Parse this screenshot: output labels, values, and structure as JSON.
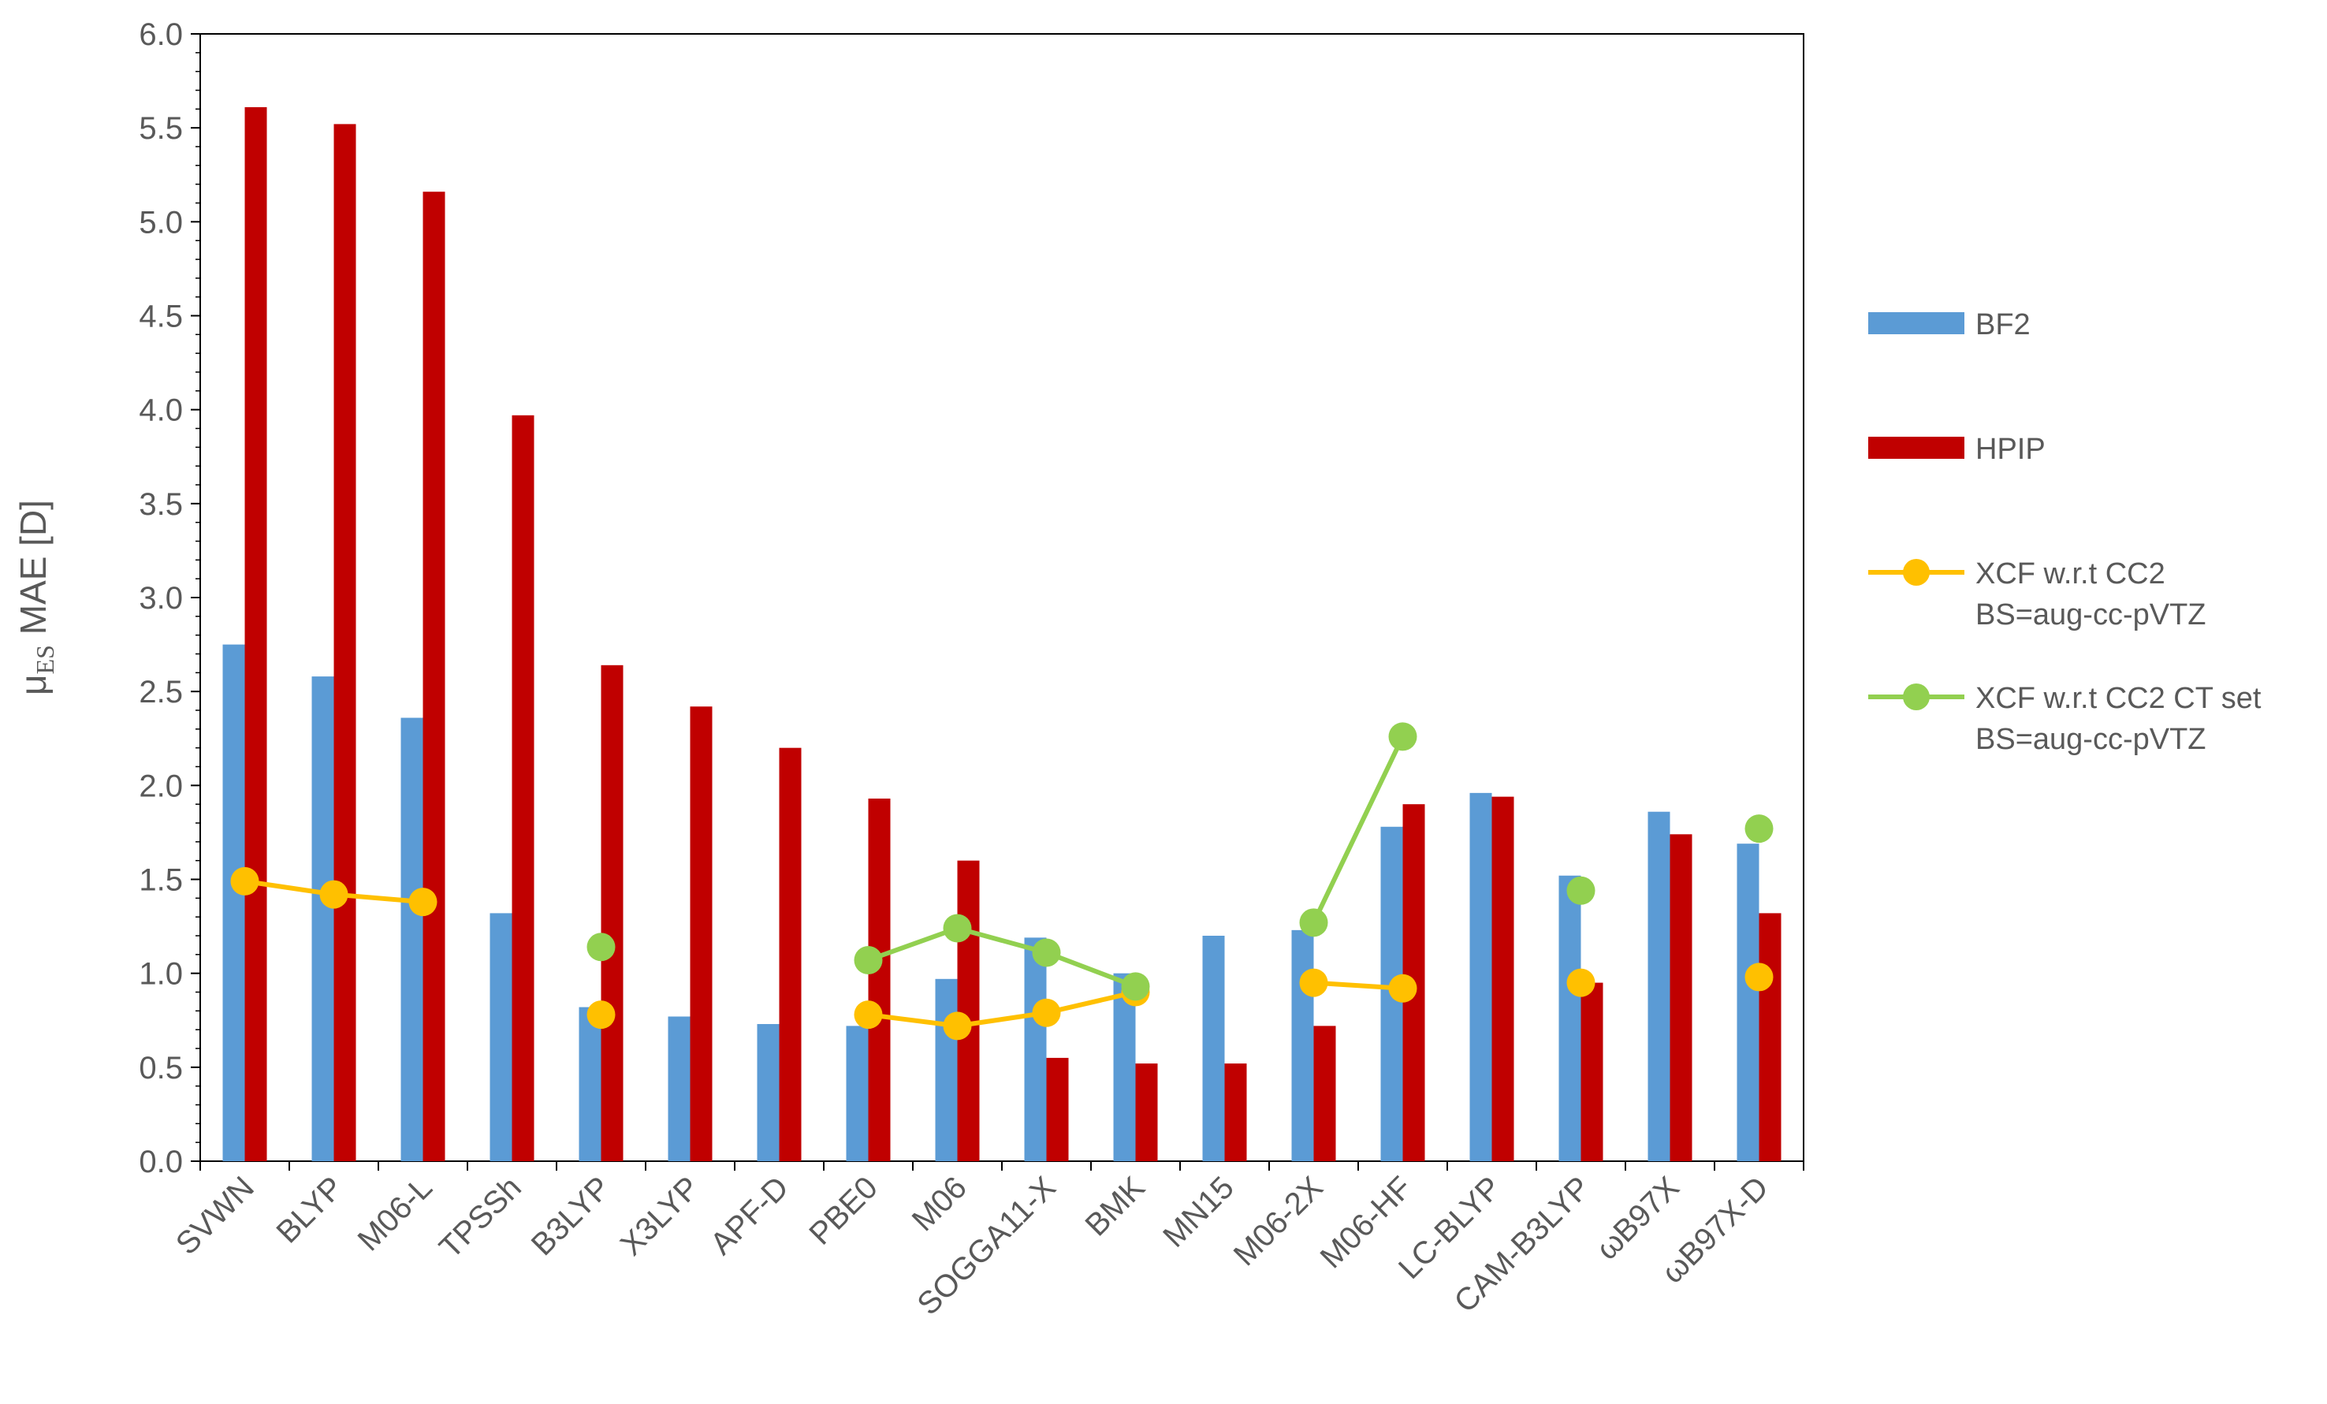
{
  "chart_data": {
    "type": "bar",
    "categories": [
      "SVWN",
      "BLYP",
      "M06-L",
      "TPSSh",
      "B3LYP",
      "X3LYP",
      "APF-D",
      "PBE0",
      "M06",
      "SOGGA11-X",
      "BMK",
      "MN15",
      "M06-2X",
      "M06-HF",
      "LC-BLYP",
      "CAM-B3LYP",
      "ωB97X",
      "ωB97X-D"
    ],
    "ylabel_main": "μ",
    "ylabel_sub": "ES",
    "ylabel_rest": " MAE [D]",
    "ylim": [
      0,
      6
    ],
    "yticks": [
      "0.0",
      "0.5",
      "1.0",
      "1.5",
      "2.0",
      "2.5",
      "3.0",
      "3.5",
      "4.0",
      "4.5",
      "5.0",
      "5.5",
      "6.0"
    ],
    "grid": false,
    "legend_position": "right",
    "series": [
      {
        "name": "BF2",
        "kind": "bar",
        "color": "#5b9bd5",
        "values": [
          2.75,
          2.58,
          2.36,
          1.32,
          0.82,
          0.77,
          0.73,
          0.72,
          0.97,
          1.19,
          1.0,
          1.2,
          1.23,
          1.78,
          1.96,
          1.52,
          1.86,
          1.69
        ]
      },
      {
        "name": "HPIP",
        "kind": "bar",
        "color": "#c00000",
        "values": [
          5.61,
          5.52,
          5.16,
          3.97,
          2.64,
          2.42,
          2.2,
          1.93,
          1.6,
          0.55,
          0.52,
          0.52,
          0.72,
          1.9,
          1.94,
          0.95,
          1.74,
          1.32
        ]
      },
      {
        "name": "XCF w.r.t CC2",
        "name_line2": "BS=aug-cc-pVTZ",
        "kind": "line",
        "color": "#ffc000",
        "values": [
          1.49,
          1.42,
          1.38,
          null,
          0.78,
          null,
          null,
          0.78,
          0.72,
          0.79,
          0.9,
          null,
          0.95,
          0.92,
          null,
          0.95,
          null,
          0.98
        ]
      },
      {
        "name": "XCF w.r.t CC2 CT set",
        "name_line2": "BS=aug-cc-pVTZ",
        "kind": "line",
        "color": "#92d050",
        "values": [
          null,
          null,
          null,
          null,
          1.14,
          null,
          null,
          1.07,
          1.24,
          1.11,
          0.93,
          null,
          1.27,
          2.26,
          null,
          1.44,
          null,
          1.77
        ]
      }
    ]
  }
}
